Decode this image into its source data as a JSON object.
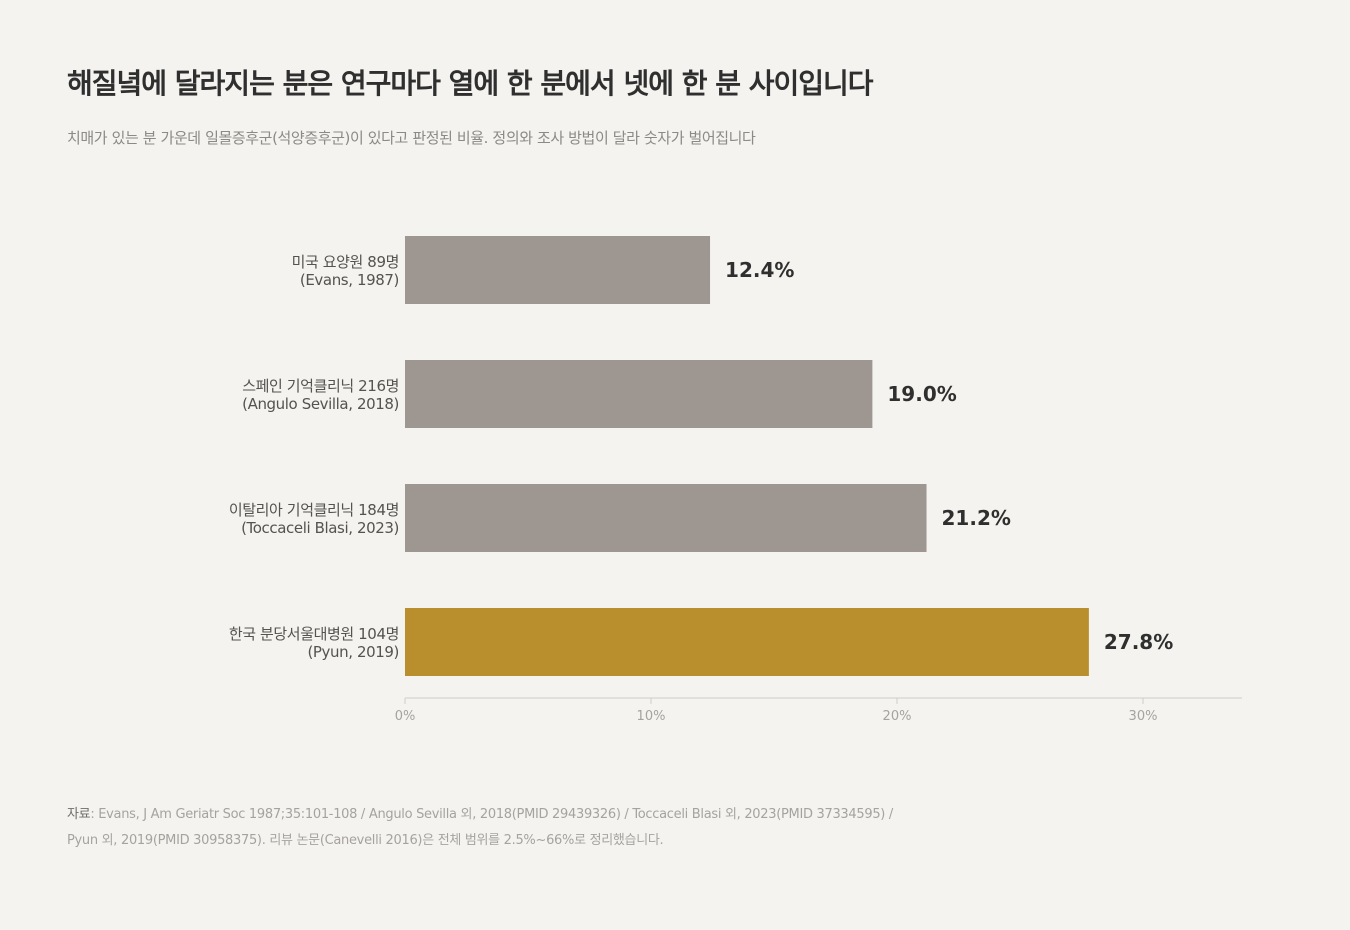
{
  "title": "해질녘에 달라지는 분은 연구마다 열에 한 분에서 넷에 한 분 사이입니다",
  "subtitle": "치매가 있는 분 가운데 일몰증후군(석양증후군)이 있다고 판정된 비율. 정의와 조사 방법이 달라 숫자가 벌어집니다",
  "colors": {
    "background": "#f4f3ef",
    "bar_default": "#9e9690",
    "bar_highlight": "#b98f2e",
    "axis": "#cfccc7",
    "tick_text": "#a6a39f",
    "label_text": "#555250",
    "value_text": "#2f2f2f"
  },
  "chart_data": {
    "type": "bar",
    "orientation": "horizontal",
    "categories": [
      {
        "line1": "미국 요양원 89명",
        "line2": "(Evans, 1987)"
      },
      {
        "line1": "스페인 기억클리닉 216명",
        "line2": "(Angulo Sevilla, 2018)"
      },
      {
        "line1": "이탈리아 기억클리닉 184명",
        "line2": "(Toccaceli Blasi, 2023)"
      },
      {
        "line1": "한국 분당서울대병원 104명",
        "line2": "(Pyun, 2019)"
      }
    ],
    "values": [
      12.4,
      19.0,
      21.2,
      27.8
    ],
    "value_labels": [
      "12.4%",
      "19.0%",
      "21.2%",
      "27.8%"
    ],
    "highlight_index": 3,
    "xlim": [
      0,
      34
    ],
    "ticks": [
      0,
      10,
      20,
      30
    ],
    "tick_labels": [
      "0%",
      "10%",
      "20%",
      "30%"
    ],
    "grid": false,
    "legend": "none"
  },
  "source": {
    "prefix": "자료",
    "line1": ": Evans, J Am Geriatr Soc 1987;35:101-108 / Angulo Sevilla 외, 2018(PMID 29439326) / Toccaceli Blasi 외, 2023(PMID 37334595) /",
    "line2": "Pyun 외, 2019(PMID 30958375). 리뷰 논문(Canevelli 2016)은 전체 범위를 2.5%~66%로 정리했습니다."
  }
}
